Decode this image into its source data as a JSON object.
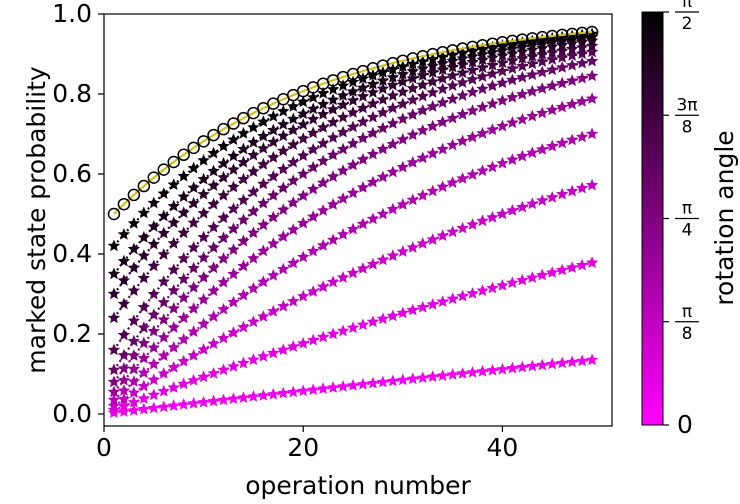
{
  "chart_data": {
    "type": "scatter",
    "xlabel": "operation number",
    "ylabel": "marked state probability",
    "xlim": [
      0,
      51
    ],
    "ylim": [
      -0.03,
      1.0
    ],
    "x_ticks": [
      0,
      20,
      40
    ],
    "y_ticks": [
      "0.0",
      "0.2",
      "0.4",
      "0.6",
      "0.8",
      "1.0"
    ],
    "x_values": "1..49",
    "colorbar": {
      "label": "rotation angle",
      "ticks": [
        {
          "value": 0,
          "label": "0"
        },
        {
          "value": 0.125,
          "label": "π/8"
        },
        {
          "value": 0.25,
          "label": "π/4"
        },
        {
          "value": 0.375,
          "label": "3π/8"
        },
        {
          "value": 0.5,
          "label": "π/2"
        }
      ],
      "colors": [
        "#ff00ff",
        "#000000"
      ]
    },
    "series": [
      {
        "angle_frac": 0.04,
        "p1": 0.003,
        "p49": 0.135,
        "color": "#f000f0"
      },
      {
        "angle_frac": 0.08,
        "p1": 0.01,
        "p49": 0.378,
        "color": "#e000e0"
      },
      {
        "angle_frac": 0.12,
        "p1": 0.02,
        "p49": 0.572,
        "color": "#c800c8"
      },
      {
        "angle_frac": 0.16,
        "p1": 0.035,
        "p49": 0.7,
        "color": "#b000b0"
      },
      {
        "angle_frac": 0.2,
        "p1": 0.055,
        "p49": 0.788,
        "color": "#980098"
      },
      {
        "angle_frac": 0.24,
        "p1": 0.08,
        "p49": 0.845,
        "color": "#800080"
      },
      {
        "angle_frac": 0.28,
        "p1": 0.11,
        "p49": 0.882,
        "color": "#680068"
      },
      {
        "angle_frac": 0.32,
        "p1": 0.16,
        "p49": 0.905,
        "color": "#520052"
      },
      {
        "angle_frac": 0.36,
        "p1": 0.24,
        "p49": 0.92,
        "color": "#3d003d"
      },
      {
        "angle_frac": 0.4,
        "p1": 0.3,
        "p49": 0.933,
        "color": "#2a002a"
      },
      {
        "angle_frac": 0.44,
        "p1": 0.35,
        "p49": 0.942,
        "color": "#180018"
      },
      {
        "angle_frac": 0.48,
        "p1": 0.42,
        "p49": 0.95,
        "color": "#080008"
      }
    ],
    "reference": {
      "p1": 0.5,
      "p49": 0.955,
      "marker": "circle",
      "line_color": "#d4c21a",
      "edge_color": "#000000"
    }
  }
}
